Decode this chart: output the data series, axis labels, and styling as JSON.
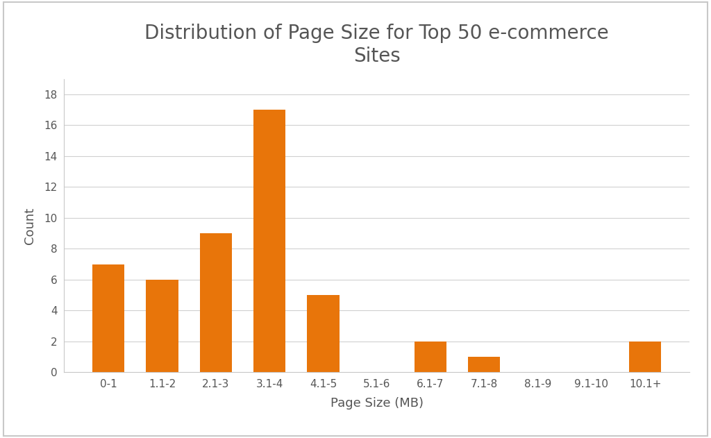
{
  "categories": [
    "0-1",
    "1.1-2",
    "2.1-3",
    "3.1-4",
    "4.1-5",
    "5.1-6",
    "6.1-7",
    "7.1-8",
    "8.1-9",
    "9.1-10",
    "10.1+"
  ],
  "values": [
    7,
    6,
    9,
    17,
    5,
    0,
    2,
    1,
    0,
    0,
    2
  ],
  "bar_color": "#E8750A",
  "title_line1": "Distribution of Page Size for Top 50 e-commerce",
  "title_line2": "Sites",
  "xlabel": "Page Size (MB)",
  "ylabel": "Count",
  "ylim": [
    0,
    19
  ],
  "yticks": [
    0,
    2,
    4,
    6,
    8,
    10,
    12,
    14,
    16,
    18
  ],
  "title_fontsize": 20,
  "axis_label_fontsize": 13,
  "tick_fontsize": 11,
  "background_color": "#ffffff",
  "grid_color": "#d0d0d0",
  "text_color": "#555555",
  "border_color": "#c8c8c8"
}
